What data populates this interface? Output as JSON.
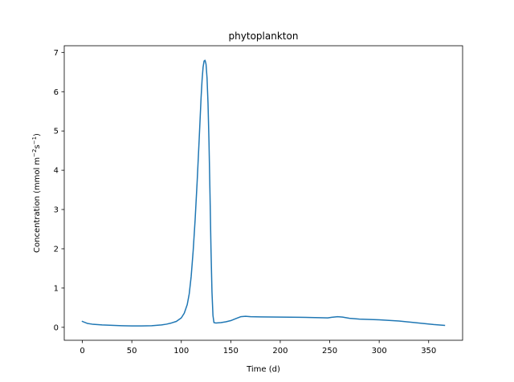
{
  "chart_data": {
    "type": "line",
    "title": "phytoplankton",
    "xlabel": "Time (d)",
    "ylabel": {
      "prefix": "Concentration (mmol m",
      "sup1": "−2",
      "mid": "s",
      "sup2": "−1",
      "suffix": ")"
    },
    "xlim": [
      -18.3,
      384.3
    ],
    "ylim": [
      -0.33,
      7.17
    ],
    "x_ticks": [
      0,
      50,
      100,
      150,
      200,
      250,
      300,
      350
    ],
    "y_ticks": [
      0,
      1,
      2,
      3,
      4,
      5,
      6,
      7
    ],
    "grid": false,
    "series": [
      {
        "name": "phytoplankton",
        "color": "#1f77b4",
        "x": [
          0,
          5,
          10,
          20,
          30,
          40,
          50,
          60,
          70,
          80,
          85,
          90,
          95,
          100,
          103,
          106,
          108,
          110,
          112,
          114,
          116,
          118,
          120,
          121,
          122,
          123,
          124,
          125,
          126,
          127,
          128,
          129,
          130,
          131,
          132,
          133,
          135,
          140,
          145,
          150,
          155,
          160,
          165,
          170,
          180,
          200,
          220,
          240,
          248,
          252,
          258,
          263,
          270,
          280,
          300,
          320,
          340,
          355,
          366
        ],
        "y": [
          0.15,
          0.1,
          0.08,
          0.06,
          0.05,
          0.04,
          0.035,
          0.035,
          0.04,
          0.06,
          0.08,
          0.11,
          0.15,
          0.24,
          0.36,
          0.58,
          0.85,
          1.3,
          1.95,
          2.75,
          3.7,
          4.75,
          5.85,
          6.3,
          6.62,
          6.78,
          6.8,
          6.7,
          6.35,
          5.7,
          4.7,
          3.4,
          2.0,
          0.9,
          0.3,
          0.12,
          0.11,
          0.12,
          0.14,
          0.17,
          0.22,
          0.27,
          0.28,
          0.27,
          0.265,
          0.26,
          0.255,
          0.245,
          0.24,
          0.255,
          0.27,
          0.26,
          0.23,
          0.21,
          0.19,
          0.16,
          0.11,
          0.07,
          0.05
        ]
      }
    ]
  }
}
